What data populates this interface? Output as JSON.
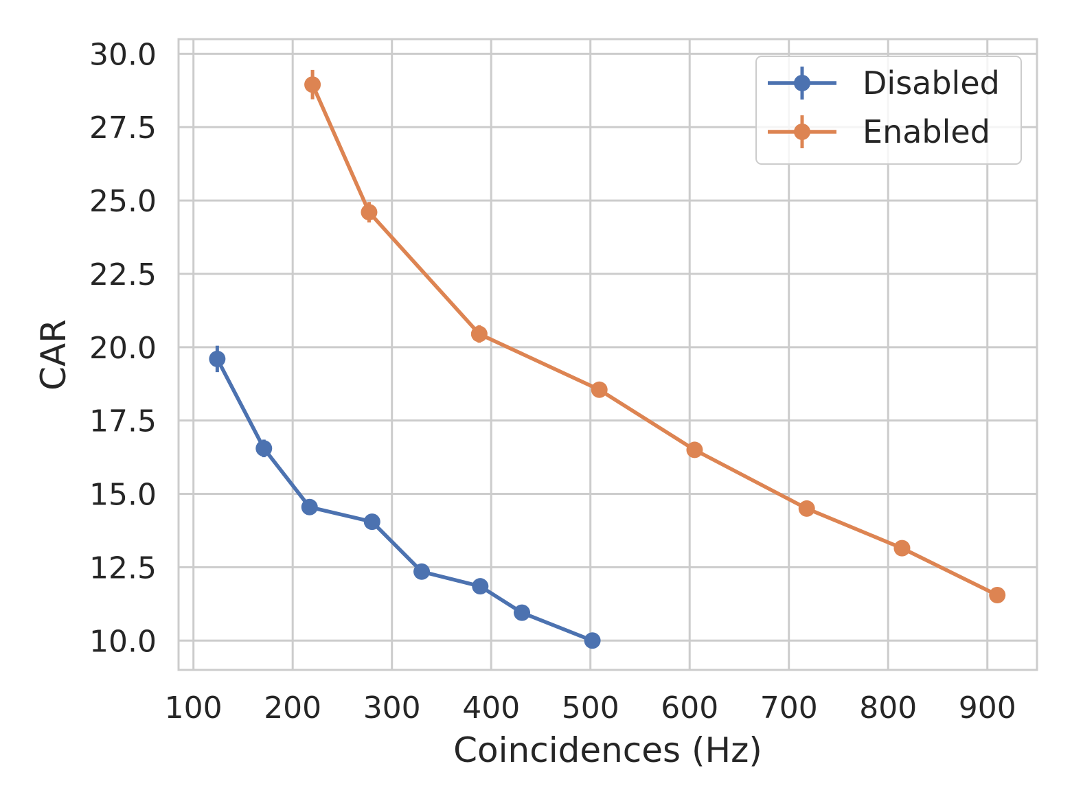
{
  "chart_data": {
    "type": "line",
    "title": "",
    "xlabel": "Coincidences (Hz)",
    "ylabel": "CAR",
    "xlim": [
      85,
      950
    ],
    "ylim": [
      9.0,
      30.5
    ],
    "xticks": [
      100,
      200,
      300,
      400,
      500,
      600,
      700,
      800,
      900
    ],
    "xtick_labels": [
      "100",
      "200",
      "300",
      "400",
      "500",
      "600",
      "700",
      "800",
      "900"
    ],
    "yticks": [
      10.0,
      12.5,
      15.0,
      17.5,
      20.0,
      22.5,
      25.0,
      27.5,
      30.0
    ],
    "ytick_labels": [
      "10.0",
      "12.5",
      "15.0",
      "17.5",
      "20.0",
      "22.5",
      "25.0",
      "27.5",
      "30.0"
    ],
    "grid": true,
    "legend_position": "top-right",
    "series": [
      {
        "name": "Disabled",
        "color": "#4c72b0",
        "x": [
          124,
          171,
          217,
          280,
          330,
          389,
          431,
          502
        ],
        "y": [
          19.6,
          16.55,
          14.55,
          14.05,
          12.35,
          11.85,
          10.95,
          10.0
        ],
        "err": [
          0.45,
          0.3,
          0.15,
          0.15,
          0.12,
          0.12,
          0.1,
          0.05
        ]
      },
      {
        "name": "Enabled",
        "color": "#dd8452",
        "x": [
          220,
          277,
          388,
          509,
          605,
          718,
          814,
          910
        ],
        "y": [
          28.95,
          24.6,
          20.45,
          18.55,
          16.5,
          14.5,
          13.15,
          11.55
        ],
        "err": [
          0.5,
          0.35,
          0.3,
          0.15,
          0.1,
          0.1,
          0.1,
          0.08
        ]
      }
    ]
  }
}
